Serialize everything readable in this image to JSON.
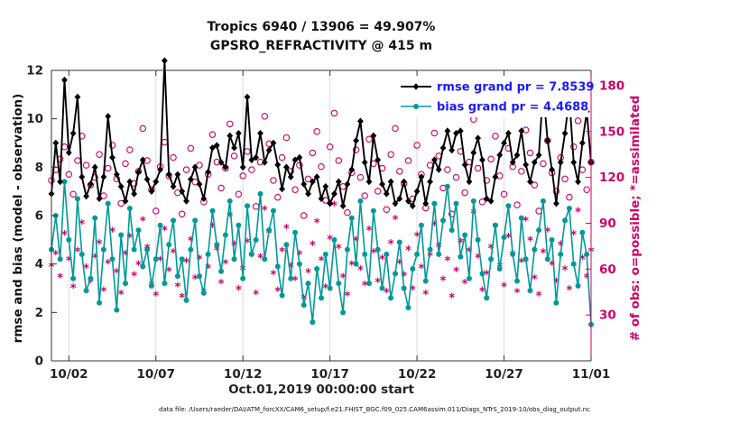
{
  "figure": {
    "title_line1": "Tropics 6940 / 13906 = 49.907%",
    "title_line2": "GPSRO_REFRACTIVITY @ 415 m",
    "stats": {
      "n_used": 6940,
      "n_possible": 13906,
      "percent_used": "49.907%",
      "rmse_grand_pr": 7.8539,
      "bias_grand_pr": 4.4688
    },
    "xlabel": "Oct.01,2019 00:00:00 start",
    "ylabel_left": "rmse and bias (model - observation)",
    "ylabel_right": "# of obs: o=possible; *=assimilated",
    "caption": "data file: /Users/raeder/DAI/ATM_forcXX/CAM6_setup/f.e21.FHIST_BGC.f09_025.CAM6assim.011/Diags_NTrS_2019-10/obs_diag_output.nc"
  },
  "chart_data": {
    "type": "line",
    "title": "Tropics 6940 / 13906 = 49.907% | GPSRO_REFRACTIVITY @ 415 m",
    "x_unit": "days since Oct 01 2019 00:00",
    "x_range_days": [
      0,
      31
    ],
    "x_step_days": 0.25,
    "x_ticks": [
      {
        "day": 1,
        "label": "10/02"
      },
      {
        "day": 6,
        "label": "10/07"
      },
      {
        "day": 11,
        "label": "10/12"
      },
      {
        "day": 16,
        "label": "10/17"
      },
      {
        "day": 21,
        "label": "10/22"
      },
      {
        "day": 26,
        "label": "10/27"
      },
      {
        "day": 31,
        "label": "11/01"
      }
    ],
    "left_axis": {
      "label": "rmse and bias (model - observation)",
      "range": [
        0,
        12
      ],
      "ticks": [
        0,
        2,
        4,
        6,
        8,
        10,
        12
      ],
      "color": "#222222"
    },
    "right_axis": {
      "label": "# of obs: o=possible; *=assimilated",
      "range": [
        0,
        190
      ],
      "ticks": [
        30,
        60,
        90,
        120,
        150,
        180
      ],
      "color": "#CC0066"
    },
    "legend": {
      "position": "top-right-inside",
      "text_color": "#1A1AFF",
      "entries": [
        "rmse grand pr = 7.8539",
        "bias grand pr = 4.4688"
      ]
    },
    "grid": {
      "vertical": true,
      "horizontal": false,
      "color": "#dcdcdc"
    },
    "series": [
      {
        "name": "rmse grand pr = 7.8539",
        "type": "line",
        "axis": "left",
        "color": "#000000",
        "marker": "diamond",
        "width": 1.9,
        "values": [
          6.9,
          9.0,
          7.4,
          11.6,
          8.6,
          9.4,
          10.9,
          7.6,
          6.8,
          7.3,
          8.0,
          6.7,
          7.6,
          10.1,
          8.4,
          7.7,
          7.2,
          6.6,
          7.4,
          6.9,
          7.8,
          8.3,
          7.5,
          7.0,
          7.4,
          7.9,
          12.4,
          7.7,
          7.2,
          7.7,
          7.0,
          6.6,
          7.5,
          8.0,
          7.3,
          6.7,
          7.8,
          8.8,
          8.9,
          8.2,
          8.0,
          9.3,
          8.8,
          9.4,
          8.0,
          10.9,
          8.3,
          8.4,
          9.4,
          8.2,
          8.7,
          9.0,
          8.1,
          7.1,
          8.0,
          7.6,
          8.3,
          8.4,
          7.3,
          6.9,
          7.4,
          7.6,
          6.7,
          7.2,
          6.5,
          6.9,
          7.4,
          6.4,
          7.3,
          7.9,
          9.1,
          9.9,
          8.2,
          7.4,
          9.3,
          8.3,
          7.3,
          6.9,
          7.4,
          6.5,
          6.7,
          7.4,
          6.6,
          6.4,
          7.0,
          7.6,
          6.5,
          7.4,
          8.3,
          7.9,
          8.8,
          9.5,
          8.7,
          9.4,
          9.5,
          8.1,
          7.4,
          8.6,
          9.2,
          8.3,
          6.7,
          6.6,
          7.6,
          8.5,
          9.0,
          9.4,
          8.2,
          8.5,
          9.5,
          8.1,
          7.4,
          8.2,
          8.5,
          11.2,
          9.1,
          7.9,
          6.5,
          8.2,
          9.4,
          10.9,
          8.2,
          7.4,
          9.0,
          10.3,
          8.2
        ]
      },
      {
        "name": "bias grand pr = 4.4688",
        "type": "line",
        "axis": "left",
        "color": "#009999",
        "marker": "circle-filled",
        "width": 1.6,
        "values": [
          4.6,
          6.0,
          4.2,
          7.4,
          5.0,
          3.4,
          6.7,
          4.4,
          2.9,
          3.4,
          5.9,
          2.4,
          4.6,
          6.5,
          4.2,
          2.1,
          5.2,
          3.2,
          6.3,
          4.6,
          5.4,
          3.9,
          4.6,
          3.1,
          4.2,
          5.6,
          3.2,
          4.8,
          5.8,
          3.5,
          4.2,
          2.5,
          4.6,
          5.8,
          3.5,
          2.8,
          4.4,
          6.2,
          4.8,
          3.7,
          5.2,
          6.6,
          4.2,
          5.6,
          3.4,
          6.4,
          4.4,
          5.0,
          6.9,
          4.2,
          5.4,
          6.2,
          3.9,
          2.7,
          4.8,
          3.4,
          5.3,
          4.0,
          2.3,
          3.2,
          1.6,
          3.8,
          2.6,
          4.4,
          3.0,
          5.0,
          3.2,
          2.0,
          4.6,
          5.9,
          4.0,
          6.6,
          4.4,
          3.2,
          6.2,
          4.6,
          3.0,
          4.4,
          2.6,
          3.6,
          4.9,
          3.0,
          2.2,
          3.8,
          4.4,
          5.6,
          3.3,
          4.6,
          6.5,
          4.4,
          5.8,
          7.2,
          5.4,
          6.5,
          4.3,
          5.2,
          3.4,
          6.6,
          5.0,
          3.6,
          2.6,
          4.2,
          5.6,
          3.8,
          5.1,
          6.4,
          4.4,
          3.3,
          5.9,
          4.2,
          2.9,
          4.6,
          5.4,
          6.6,
          4.2,
          5.0,
          2.4,
          4.4,
          5.8,
          6.3,
          4.0,
          3.1,
          5.3,
          4.4,
          1.5
        ]
      },
      {
        "name": "# of obs possible",
        "type": "scatter",
        "axis": "right",
        "color": "#CC0066",
        "marker": "circle-open",
        "values": [
          118,
          125,
          132,
          140,
          122,
          109,
          131,
          147,
          128,
          115,
          120,
          135,
          108,
          126,
          141,
          119,
          103,
          129,
          138,
          116,
          124,
          152,
          131,
          112,
          98,
          127,
          143,
          121,
          133,
          110,
          96,
          125,
          139,
          117,
          128,
          104,
          122,
          148,
          130,
          113,
          126,
          155,
          134,
          109,
          121,
          137,
          125,
          101,
          130,
          160,
          142,
          118,
          107,
          133,
          146,
          124,
          112,
          128,
          95,
          119,
          136,
          150,
          127,
          105,
          140,
          162,
          131,
          114,
          97,
          123,
          138,
          120,
          108,
          145,
          129,
          111,
          126,
          99,
          135,
          152,
          124,
          116,
          131,
          106,
          141,
          122,
          100,
          128,
          149,
          134,
          113,
          125,
          96,
          120,
          137,
          110,
          130,
          158,
          126,
          104,
          118,
          132,
          147,
          121,
          109,
          139,
          127,
          102,
          124,
          151,
          136,
          115,
          98,
          129,
          144,
          123,
          111,
          133,
          119,
          107,
          140,
          157,
          125,
          112,
          130
        ]
      },
      {
        "name": "# of obs assimilated",
        "type": "scatter",
        "axis": "right",
        "color": "#CC0066",
        "marker": "asterisk",
        "values": [
          62,
          70,
          55,
          83,
          66,
          48,
          72,
          90,
          61,
          52,
          68,
          77,
          46,
          64,
          85,
          58,
          44,
          70,
          81,
          56,
          63,
          92,
          74,
          50,
          43,
          66,
          86,
          59,
          71,
          49,
          42,
          65,
          79,
          54,
          67,
          45,
          61,
          88,
          73,
          51,
          64,
          95,
          76,
          47,
          60,
          78,
          69,
          44,
          68,
          99,
          84,
          57,
          46,
          72,
          87,
          62,
          53,
          70,
          41,
          58,
          76,
          91,
          66,
          48,
          80,
          102,
          74,
          55,
          43,
          63,
          79,
          60,
          50,
          86,
          71,
          52,
          67,
          45,
          77,
          93,
          64,
          56,
          73,
          47,
          82,
          61,
          44,
          69,
          89,
          75,
          53,
          66,
          42,
          59,
          78,
          51,
          72,
          97,
          68,
          46,
          57,
          74,
          88,
          62,
          49,
          81,
          70,
          45,
          65,
          92,
          79,
          54,
          43,
          71,
          85,
          63,
          52,
          76,
          60,
          47,
          83,
          98,
          67,
          55,
          72
        ]
      }
    ]
  }
}
